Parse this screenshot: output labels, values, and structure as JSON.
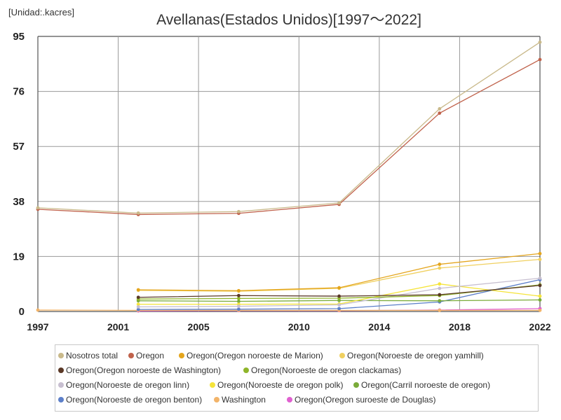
{
  "chart_data": {
    "type": "line",
    "title": "Avellanas(Estados Unidos)[1997～2022]",
    "unit_label": "[Unidad:.kacres]",
    "xlabel": "",
    "ylabel": "",
    "xlim": [
      1997,
      2022
    ],
    "ylim": [
      0,
      95
    ],
    "x_ticks": [
      1997,
      2001,
      2005,
      2010,
      2014,
      2018,
      2022
    ],
    "y_ticks": [
      0,
      19,
      38,
      57,
      76,
      95
    ],
    "grid": true,
    "legend_position": "bottom",
    "series": [
      {
        "name": "Nosotros total",
        "color": "#c9b98a",
        "points": [
          [
            1997,
            35.8
          ],
          [
            2002,
            34.0
          ],
          [
            2007,
            34.5
          ],
          [
            2012,
            37.5
          ],
          [
            2017,
            70.0
          ],
          [
            2022,
            93.0
          ]
        ]
      },
      {
        "name": "Oregon",
        "color": "#c0624b",
        "points": [
          [
            1997,
            35.3
          ],
          [
            2002,
            33.5
          ],
          [
            2007,
            33.9
          ],
          [
            2012,
            37.0
          ],
          [
            2017,
            68.5
          ],
          [
            2022,
            87.0
          ]
        ]
      },
      {
        "name": "Oregon(Oregon noroeste de Marion)",
        "color": "#e4a51d",
        "points": [
          [
            2002,
            7.5
          ],
          [
            2007,
            7.2
          ],
          [
            2012,
            8.2
          ],
          [
            2017,
            16.3
          ],
          [
            2022,
            20.0
          ]
        ]
      },
      {
        "name": "Oregon(Noroeste de oregon yamhill)",
        "color": "#f0d060",
        "points": [
          [
            2002,
            7.3
          ],
          [
            2007,
            7.0
          ],
          [
            2012,
            8.0
          ],
          [
            2017,
            15.0
          ],
          [
            2022,
            18.0
          ]
        ]
      },
      {
        "name": "Oregon(Oregon noroeste de Washington)",
        "color": "#5a3826",
        "points": [
          [
            2002,
            4.9
          ],
          [
            2007,
            5.5
          ],
          [
            2012,
            5.3
          ],
          [
            2017,
            5.8
          ],
          [
            2022,
            9.0
          ]
        ]
      },
      {
        "name": "Oregon(Noroeste de oregon clackamas)",
        "color": "#8fb52a",
        "points": [
          [
            2002,
            4.3
          ],
          [
            2007,
            4.5
          ],
          [
            2012,
            4.6
          ],
          [
            2017,
            5.5
          ],
          [
            2022,
            9.2
          ]
        ]
      },
      {
        "name": "Oregon(Noroeste de oregon linn)",
        "color": "#c7bfd0",
        "points": [
          [
            2002,
            1.6
          ],
          [
            2007,
            1.8
          ],
          [
            2012,
            2.3
          ],
          [
            2017,
            8.0
          ],
          [
            2022,
            11.5
          ]
        ]
      },
      {
        "name": "Oregon(Noroeste de oregon polk)",
        "color": "#f5e43a",
        "points": [
          [
            2002,
            2.5
          ],
          [
            2007,
            2.5
          ],
          [
            2012,
            2.6
          ],
          [
            2017,
            9.5
          ],
          [
            2022,
            5.3
          ]
        ]
      },
      {
        "name": "Oregon(Carril noroeste de oregon)",
        "color": "#7aab3a",
        "points": [
          [
            2002,
            3.7
          ],
          [
            2007,
            3.5
          ],
          [
            2012,
            3.8
          ],
          [
            2017,
            3.7
          ],
          [
            2022,
            4.0
          ]
        ]
      },
      {
        "name": "Oregon(Noroeste de oregon benton)",
        "color": "#5c7fc9",
        "points": [
          [
            2002,
            0.7
          ],
          [
            2007,
            0.8
          ],
          [
            2012,
            1.0
          ],
          [
            2017,
            3.3
          ],
          [
            2022,
            11.0
          ]
        ]
      },
      {
        "name": "Washington",
        "color": "#f2b46a",
        "points": [
          [
            1997,
            0.5
          ],
          [
            2002,
            0.4
          ],
          [
            2007,
            0.4
          ],
          [
            2012,
            0.4
          ],
          [
            2017,
            0.4
          ],
          [
            2022,
            0.4
          ]
        ]
      },
      {
        "name": "Oregon(Oregon suroeste de Douglas)",
        "color": "#e060d0",
        "points": [
          [
            2002,
            0.2
          ],
          [
            2007,
            0.3
          ],
          [
            2012,
            0.3
          ],
          [
            2017,
            0.5
          ],
          [
            2022,
            1.0
          ]
        ]
      }
    ]
  }
}
